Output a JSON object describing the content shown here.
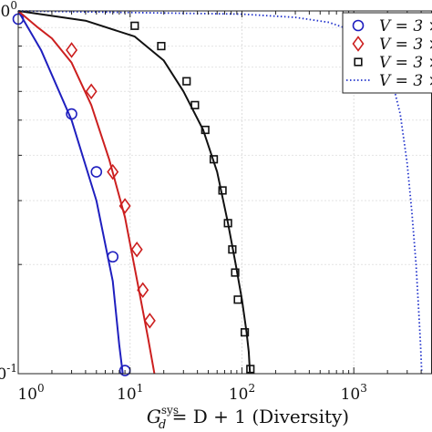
{
  "chart_data": {
    "type": "line",
    "x_scale": "log",
    "y_scale": "log",
    "xlim": [
      1,
      5000
    ],
    "ylim": [
      0.1,
      1
    ],
    "xlabel_parts": {
      "G": "G",
      "sub": "d",
      "sup": "sys",
      "rest": " = D + 1 (Diversity)"
    },
    "x_ticks": [
      {
        "base": "10",
        "exp": "0",
        "value": 1
      },
      {
        "base": "10",
        "exp": "1",
        "value": 10
      },
      {
        "base": "10",
        "exp": "2",
        "value": 100
      },
      {
        "base": "10",
        "exp": "3",
        "value": 1000
      }
    ],
    "y_ticks": [
      {
        "base": "10",
        "exp": "0",
        "value": 1
      },
      {
        "base": "10",
        "exp": "-1",
        "value": 0.1
      }
    ],
    "grid": true,
    "legend_position": "top-right",
    "legend": [
      {
        "text": "V = 3 ×",
        "color": "#1f1fbf",
        "marker": "circle",
        "style": "solid"
      },
      {
        "text": "V = 3 ×",
        "color": "#cc1f1f",
        "marker": "diamond",
        "style": "solid"
      },
      {
        "text": "V = 3 ×",
        "color": "#111111",
        "marker": "square",
        "style": "solid"
      },
      {
        "text": "V = 3 ×",
        "color": "#2233cc",
        "marker": "none",
        "style": "dotted"
      }
    ],
    "series": [
      {
        "color": "#1f1fbf",
        "style": "solid",
        "marker": "circle",
        "line": {
          "x": [
            1,
            1.6,
            3.0,
            5.0,
            7.0,
            8.0,
            8.6
          ],
          "y": [
            1.0,
            0.78,
            0.5,
            0.3,
            0.18,
            0.12,
            0.1
          ]
        },
        "markers": {
          "x": [
            1.0,
            3.0,
            5.0,
            7.0,
            9.0
          ],
          "y": [
            0.95,
            0.52,
            0.36,
            0.21,
            0.102
          ]
        }
      },
      {
        "color": "#cc1f1f",
        "style": "solid",
        "marker": "diamond",
        "line": {
          "x": [
            1,
            1.5,
            2.0,
            3.0,
            4.5,
            6.5,
            9.0,
            12.0,
            14.5,
            16.5
          ],
          "y": [
            1.0,
            0.9,
            0.84,
            0.72,
            0.55,
            0.39,
            0.27,
            0.17,
            0.125,
            0.1
          ]
        },
        "markers": {
          "x": [
            3.0,
            4.5,
            7.0,
            9.0,
            11.5,
            13.0,
            15.0
          ],
          "y": [
            0.78,
            0.6,
            0.36,
            0.29,
            0.22,
            0.17,
            0.14
          ]
        }
      },
      {
        "color": "#111111",
        "style": "solid",
        "marker": "square",
        "line": {
          "x": [
            1,
            4.0,
            11.0,
            20.0,
            30.0,
            45.0,
            60.0,
            75.0,
            88.0,
            100.0,
            110.0,
            115.0,
            118.0
          ],
          "y": [
            1.0,
            0.94,
            0.85,
            0.73,
            0.6,
            0.47,
            0.36,
            0.26,
            0.2,
            0.16,
            0.13,
            0.115,
            0.1
          ]
        },
        "markers": {
          "x": [
            11.0,
            19.0,
            32.0,
            38.0,
            47.0,
            56.0,
            67.0,
            75.0,
            82.0,
            87.0,
            92.0,
            106.0,
            119.0
          ],
          "y": [
            0.91,
            0.8,
            0.64,
            0.55,
            0.47,
            0.39,
            0.32,
            0.26,
            0.22,
            0.19,
            0.16,
            0.13,
            0.103
          ]
        }
      },
      {
        "color": "#2233cc",
        "style": "dotted",
        "marker": "none",
        "line": {
          "x": [
            1,
            100,
            300,
            600,
            1000,
            1400,
            1800,
            2200,
            2600,
            3000,
            3300,
            3600,
            3800,
            3950,
            4050
          ],
          "y": [
            1.0,
            0.98,
            0.96,
            0.93,
            0.88,
            0.82,
            0.74,
            0.64,
            0.52,
            0.38,
            0.28,
            0.2,
            0.15,
            0.12,
            0.1
          ]
        }
      }
    ]
  }
}
